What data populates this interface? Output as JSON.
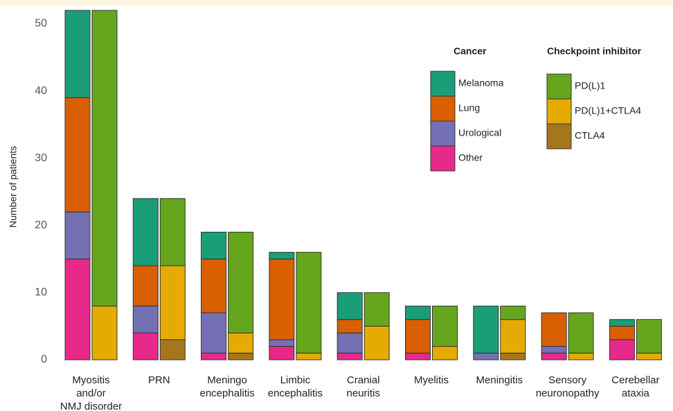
{
  "chart_data": {
    "type": "grouped-stacked-bar",
    "y_label": "Number of patients",
    "categories": [
      [
        "Myositis",
        "and/or",
        "NMJ disorder"
      ],
      [
        "PRN"
      ],
      [
        "Meningo",
        "encephalitis"
      ],
      [
        "Limbic",
        "encephalitis"
      ],
      [
        "Cranial",
        "neuritis"
      ],
      [
        "Myelitis"
      ],
      [
        "Meningitis"
      ],
      [
        "Sensory",
        "neuronopathy"
      ],
      [
        "Cerebellar",
        "ataxia"
      ]
    ],
    "ylim": [
      0,
      52
    ],
    "yticks": [
      0,
      10,
      20,
      30,
      40,
      50
    ],
    "stacks": [
      {
        "title": "Cancer",
        "series": [
          {
            "name": "Other",
            "color": "#e7298a",
            "values": [
              15,
              4,
              1,
              2,
              1,
              1,
              0,
              1,
              3
            ]
          },
          {
            "name": "Urological",
            "color": "#7570b3",
            "values": [
              7,
              4,
              6,
              1,
              3,
              0,
              1,
              1,
              0
            ]
          },
          {
            "name": "Lung",
            "color": "#d95f02",
            "values": [
              17,
              6,
              8,
              12,
              2,
              5,
              0,
              5,
              2
            ]
          },
          {
            "name": "Melanoma",
            "color": "#1b9e77",
            "values": [
              13,
              10,
              4,
              1,
              4,
              2,
              7,
              0,
              1
            ]
          }
        ]
      },
      {
        "title": "Checkpoint inhibitor",
        "series": [
          {
            "name": "CTLA4",
            "color": "#a6761d",
            "values": [
              0,
              3,
              1,
              0,
              0,
              0,
              1,
              0,
              0
            ]
          },
          {
            "name": "PD(L)1+CTLA4",
            "color": "#e6ab02",
            "values": [
              8,
              11,
              3,
              1,
              5,
              2,
              5,
              1,
              1
            ]
          },
          {
            "name": "PD(L)1",
            "color": "#66a61e",
            "values": [
              44,
              10,
              15,
              15,
              5,
              6,
              2,
              6,
              5
            ]
          }
        ]
      }
    ]
  }
}
